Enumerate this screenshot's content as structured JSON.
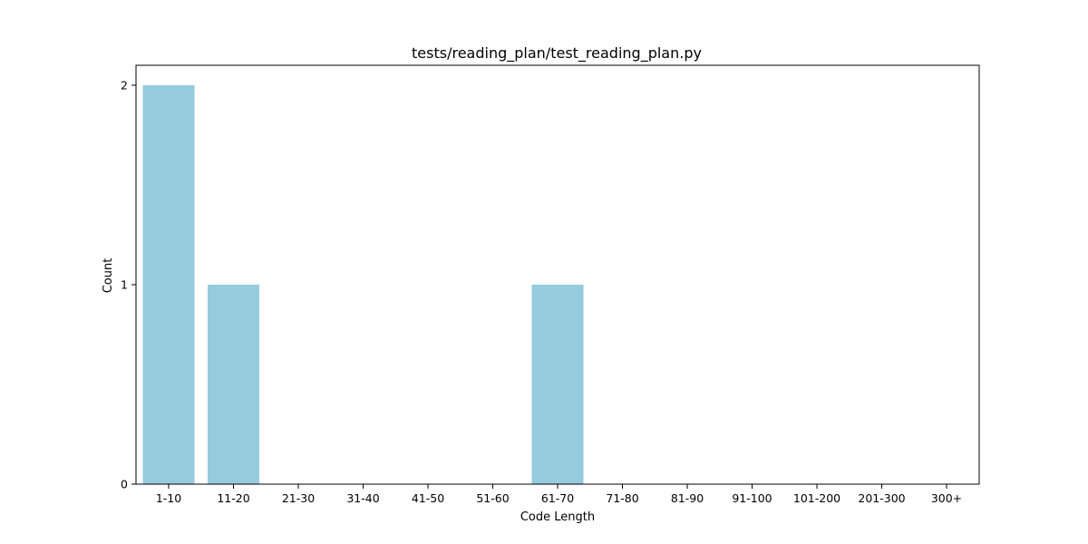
{
  "chart_data": {
    "type": "bar",
    "title": "tests/reading_plan/test_reading_plan.py",
    "xlabel": "Code Length",
    "ylabel": "Count",
    "categories": [
      "1-10",
      "11-20",
      "21-30",
      "31-40",
      "41-50",
      "51-60",
      "61-70",
      "71-80",
      "81-90",
      "91-100",
      "101-200",
      "201-300",
      "300+"
    ],
    "values": [
      2,
      1,
      0,
      0,
      0,
      0,
      1,
      0,
      0,
      0,
      0,
      0,
      0
    ],
    "ylim": [
      0,
      2.1
    ],
    "yticks": [
      0,
      1,
      2
    ],
    "bar_color": "#96cadd",
    "grid": false,
    "legend": "none"
  }
}
